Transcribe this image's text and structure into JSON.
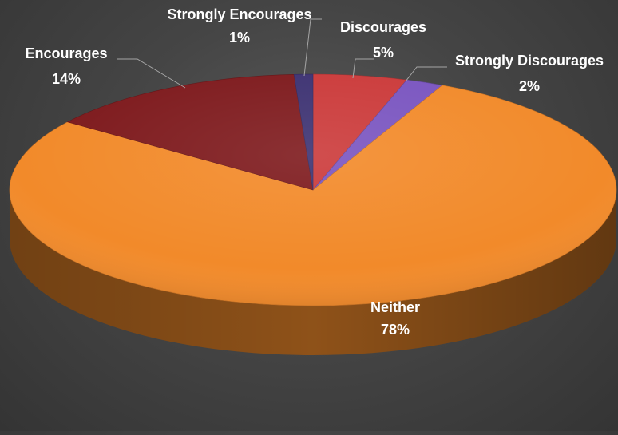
{
  "chart_data": {
    "type": "pie",
    "style": "3d",
    "slices": [
      {
        "label": "Discourages",
        "value": 5,
        "display": "5%",
        "color": "#cb3a3a"
      },
      {
        "label": "Strongly Discourages",
        "value": 2,
        "display": "2%",
        "color": "#7a55c0"
      },
      {
        "label": "Neither",
        "value": 78,
        "display": "78%",
        "color": "#f28a2a"
      },
      {
        "label": "Encourages",
        "value": 14,
        "display": "14%",
        "color": "#7e1a1d"
      },
      {
        "label": "Strongly Encourages",
        "value": 1,
        "display": "1%",
        "color": "#3d3272"
      }
    ],
    "background_color": "#404040",
    "label_color": "#ffffff"
  }
}
